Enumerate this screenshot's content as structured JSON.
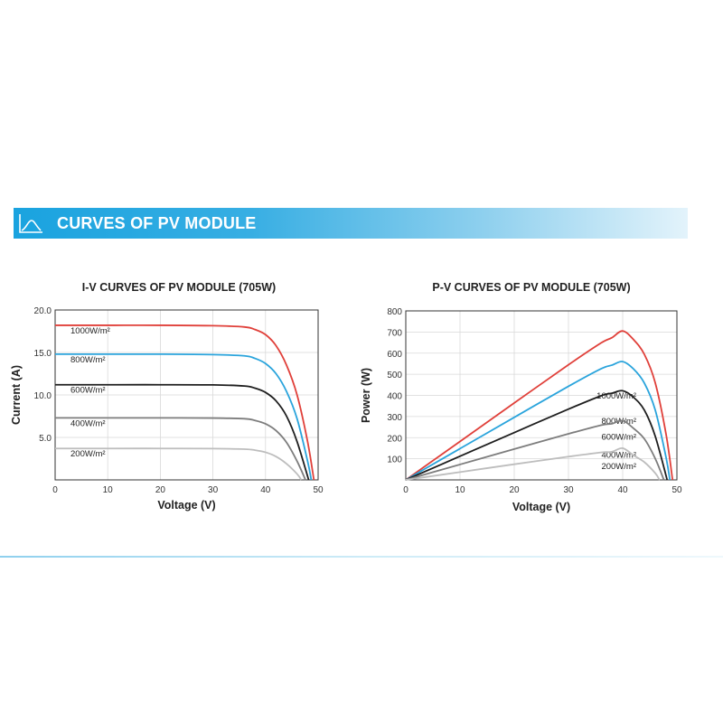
{
  "banner": {
    "title": "CURVES OF PV MODULE",
    "icon": "line-chart-icon",
    "color": "#1aa3df"
  },
  "chart_data": [
    {
      "type": "line",
      "title": "I-V CURVES OF PV MODULE (705W)",
      "xlabel": "Voltage (V)",
      "ylabel": "Current (A)",
      "xlim": [
        0,
        50
      ],
      "ylim": [
        0,
        20
      ],
      "xticks": [
        0,
        10,
        20,
        30,
        40,
        50
      ],
      "yticks": [
        5.0,
        10.0,
        15.0,
        20.0
      ],
      "ytick_labels": [
        "5.0",
        "10.0",
        "15.0",
        "20.0"
      ],
      "grid": true,
      "series": [
        {
          "name": "1000W/m²",
          "color": "#e0403a",
          "x": [
            0,
            10,
            20,
            30,
            36,
            38,
            40,
            42,
            44,
            46,
            48,
            49.2
          ],
          "y": [
            18.2,
            18.2,
            18.2,
            18.15,
            18.0,
            17.7,
            17.1,
            15.8,
            13.5,
            10.0,
            4.5,
            0
          ]
        },
        {
          "name": "800W/m²",
          "color": "#2aa4dc",
          "x": [
            0,
            10,
            20,
            30,
            36,
            38,
            40,
            42,
            44,
            46,
            48,
            48.7
          ],
          "y": [
            14.8,
            14.8,
            14.8,
            14.75,
            14.6,
            14.3,
            13.7,
            12.5,
            10.4,
            7.2,
            2.2,
            0
          ]
        },
        {
          "name": "600W/m²",
          "color": "#1e1e1e",
          "x": [
            0,
            10,
            20,
            30,
            36,
            38,
            40,
            42,
            44,
            46,
            48.2
          ],
          "y": [
            11.2,
            11.2,
            11.2,
            11.18,
            11.05,
            10.8,
            10.3,
            9.3,
            7.5,
            4.5,
            0
          ]
        },
        {
          "name": "400W/m²",
          "color": "#7d7d7d",
          "x": [
            0,
            10,
            20,
            30,
            36,
            38,
            40,
            42,
            44,
            46,
            47.6
          ],
          "y": [
            7.3,
            7.3,
            7.3,
            7.28,
            7.2,
            7.0,
            6.6,
            5.8,
            4.4,
            2.2,
            0
          ]
        },
        {
          "name": "200W/m²",
          "color": "#bdbdbd",
          "x": [
            0,
            10,
            20,
            30,
            36,
            38,
            40,
            42,
            44,
            46,
            46.8
          ],
          "y": [
            3.7,
            3.7,
            3.7,
            3.68,
            3.62,
            3.5,
            3.25,
            2.75,
            1.9,
            0.7,
            0
          ]
        }
      ]
    },
    {
      "type": "line",
      "title": "P-V CURVES OF PV MODULE (705W)",
      "xlabel": "Voltage (V)",
      "ylabel": "Power (W)",
      "xlim": [
        0,
        50
      ],
      "ylim": [
        0,
        800
      ],
      "xticks": [
        0,
        10,
        20,
        30,
        40,
        50
      ],
      "yticks": [
        100,
        200,
        300,
        400,
        500,
        600,
        700,
        800
      ],
      "ytick_labels": [
        "100",
        "200",
        "300",
        "400",
        "500",
        "600",
        "700",
        "800"
      ],
      "grid": true,
      "series": [
        {
          "name": "1000W/m²",
          "color": "#e0403a",
          "x": [
            0,
            10,
            20,
            30,
            36,
            38,
            40,
            42,
            44,
            46,
            48,
            49.2
          ],
          "y": [
            0,
            182,
            364,
            545,
            648,
            673,
            705,
            664,
            594,
            460,
            216,
            0
          ]
        },
        {
          "name": "800W/m²",
          "color": "#2aa4dc",
          "x": [
            0,
            10,
            20,
            30,
            36,
            38,
            40,
            42,
            44,
            46,
            48,
            48.7
          ],
          "y": [
            0,
            148,
            296,
            443,
            526,
            543,
            560,
            525,
            458,
            331,
            106,
            0
          ]
        },
        {
          "name": "600W/m²",
          "color": "#1e1e1e",
          "x": [
            0,
            10,
            20,
            30,
            36,
            38,
            40,
            42,
            44,
            46,
            48.2
          ],
          "y": [
            0,
            112,
            224,
            335,
            398,
            410,
            422,
            391,
            330,
            207,
            0
          ]
        },
        {
          "name": "400W/m²",
          "color": "#7d7d7d",
          "x": [
            0,
            10,
            20,
            30,
            36,
            38,
            40,
            42,
            44,
            46,
            47.6
          ],
          "y": [
            0,
            73,
            146,
            218,
            259,
            266,
            280,
            244,
            194,
            101,
            0
          ]
        },
        {
          "name": "200W/m²",
          "color": "#bdbdbd",
          "x": [
            0,
            10,
            20,
            30,
            36,
            38,
            40,
            42,
            44,
            46,
            46.8
          ],
          "y": [
            0,
            37,
            74,
            110,
            130,
            133,
            150,
            116,
            84,
            32,
            0
          ]
        }
      ]
    }
  ]
}
